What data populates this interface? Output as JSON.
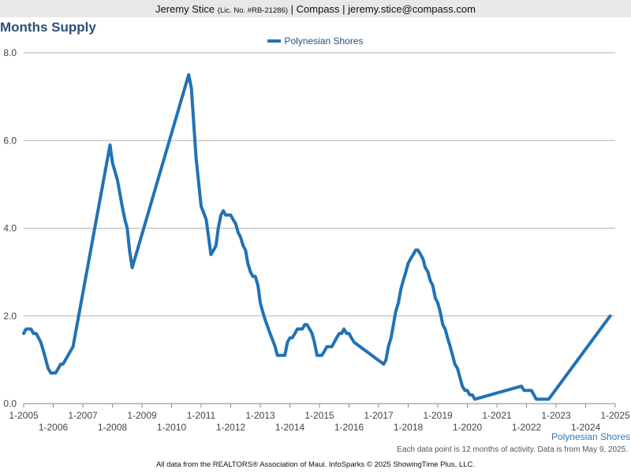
{
  "header": {
    "agent_name": "Jeremy Stice",
    "license": "(Lic. No. #RB-21286)",
    "company": "| Compass |",
    "email": "jeremy.stice@compass.com"
  },
  "footer": {
    "series_label": "Polynesian Shores",
    "note": "Each data point is 12 months of activity. Data is from May 9, 2025.",
    "credits": "All data from the REALTORS® Association of Maui. InfoSparks © 2025 ShowingTime Plus, LLC."
  },
  "colors": {
    "series": "#2272b4",
    "title": "#2e4f78"
  },
  "chart_data": {
    "type": "line",
    "title": "Months Supply",
    "ylim": [
      0,
      8
    ],
    "yticks": [
      "0.0",
      "2.0",
      "4.0",
      "6.0",
      "8.0"
    ],
    "xlim": [
      2005,
      2025
    ],
    "xticks": [
      "1-2005",
      "1-2006",
      "1-2007",
      "1-2008",
      "1-2009",
      "1-2010",
      "1-2011",
      "1-2012",
      "1-2013",
      "1-2014",
      "1-2015",
      "1-2016",
      "1-2017",
      "1-2018",
      "1-2019",
      "1-2020",
      "1-2021",
      "1-2022",
      "1-2023",
      "1-2024",
      "1-2025"
    ],
    "grid": true,
    "legend_position": "top-center",
    "series": [
      {
        "name": "Polynesian Shores",
        "x": [
          2005.0,
          2005.08,
          2005.17,
          2005.25,
          2005.33,
          2005.42,
          2005.5,
          2005.58,
          2005.67,
          2005.75,
          2005.83,
          2005.92,
          2006.0,
          2006.08,
          2006.17,
          2006.25,
          2006.33,
          2006.5,
          2006.67,
          2007.92,
          2008.0,
          2008.17,
          2008.33,
          2008.42,
          2008.5,
          2008.58,
          2008.67,
          2010.58,
          2010.67,
          2010.75,
          2010.83,
          2011.0,
          2011.17,
          2011.25,
          2011.33,
          2011.42,
          2011.5,
          2011.58,
          2011.67,
          2011.75,
          2011.83,
          2011.92,
          2012.0,
          2012.08,
          2012.17,
          2012.25,
          2012.33,
          2012.42,
          2012.5,
          2012.58,
          2012.67,
          2012.75,
          2012.83,
          2012.92,
          2013.0,
          2013.08,
          2013.17,
          2013.33,
          2013.5,
          2013.58,
          2013.67,
          2013.75,
          2013.83,
          2013.92,
          2014.0,
          2014.08,
          2014.17,
          2014.25,
          2014.33,
          2014.42,
          2014.5,
          2014.58,
          2014.67,
          2014.75,
          2014.83,
          2014.92,
          2015.0,
          2015.08,
          2015.17,
          2015.25,
          2015.33,
          2015.42,
          2015.5,
          2015.58,
          2015.67,
          2015.75,
          2015.83,
          2015.92,
          2016.0,
          2016.08,
          2016.17,
          2017.17,
          2017.25,
          2017.33,
          2017.42,
          2017.5,
          2017.58,
          2017.67,
          2017.75,
          2017.83,
          2017.92,
          2018.0,
          2018.08,
          2018.17,
          2018.25,
          2018.33,
          2018.42,
          2018.5,
          2018.58,
          2018.67,
          2018.75,
          2018.83,
          2018.92,
          2019.0,
          2019.08,
          2019.17,
          2019.25,
          2019.33,
          2019.42,
          2019.5,
          2019.58,
          2019.67,
          2019.75,
          2019.83,
          2019.92,
          2020.0,
          2020.08,
          2020.17,
          2020.25,
          2021.83,
          2021.92,
          2022.0,
          2022.08,
          2022.17,
          2022.25,
          2022.33,
          2022.42,
          2022.5,
          2022.67,
          2022.75,
          2024.83
        ],
        "values": [
          1.6,
          1.7,
          1.7,
          1.7,
          1.6,
          1.6,
          1.5,
          1.4,
          1.2,
          1.0,
          0.8,
          0.7,
          0.7,
          0.7,
          0.8,
          0.9,
          0.9,
          1.1,
          1.3,
          5.9,
          5.5,
          5.1,
          4.5,
          4.2,
          4.0,
          3.5,
          3.1,
          7.5,
          7.2,
          6.4,
          5.6,
          4.5,
          4.2,
          3.8,
          3.4,
          3.5,
          3.6,
          4.0,
          4.3,
          4.4,
          4.3,
          4.3,
          4.3,
          4.2,
          4.1,
          3.9,
          3.8,
          3.6,
          3.5,
          3.2,
          3.0,
          2.9,
          2.9,
          2.7,
          2.3,
          2.1,
          1.9,
          1.6,
          1.3,
          1.1,
          1.1,
          1.1,
          1.1,
          1.4,
          1.5,
          1.5,
          1.6,
          1.7,
          1.7,
          1.7,
          1.8,
          1.8,
          1.7,
          1.6,
          1.4,
          1.1,
          1.1,
          1.1,
          1.2,
          1.3,
          1.3,
          1.3,
          1.4,
          1.5,
          1.6,
          1.6,
          1.7,
          1.6,
          1.6,
          1.5,
          1.4,
          0.9,
          1.0,
          1.3,
          1.5,
          1.8,
          2.1,
          2.3,
          2.6,
          2.8,
          3.0,
          3.2,
          3.3,
          3.4,
          3.5,
          3.5,
          3.4,
          3.3,
          3.1,
          3.0,
          2.8,
          2.7,
          2.4,
          2.3,
          2.1,
          1.8,
          1.7,
          1.5,
          1.3,
          1.1,
          0.9,
          0.8,
          0.6,
          0.4,
          0.3,
          0.3,
          0.2,
          0.2,
          0.1,
          0.4,
          0.3,
          0.3,
          0.3,
          0.3,
          0.2,
          0.1,
          0.1,
          0.1,
          0.1,
          0.1,
          2.0
        ]
      }
    ]
  }
}
